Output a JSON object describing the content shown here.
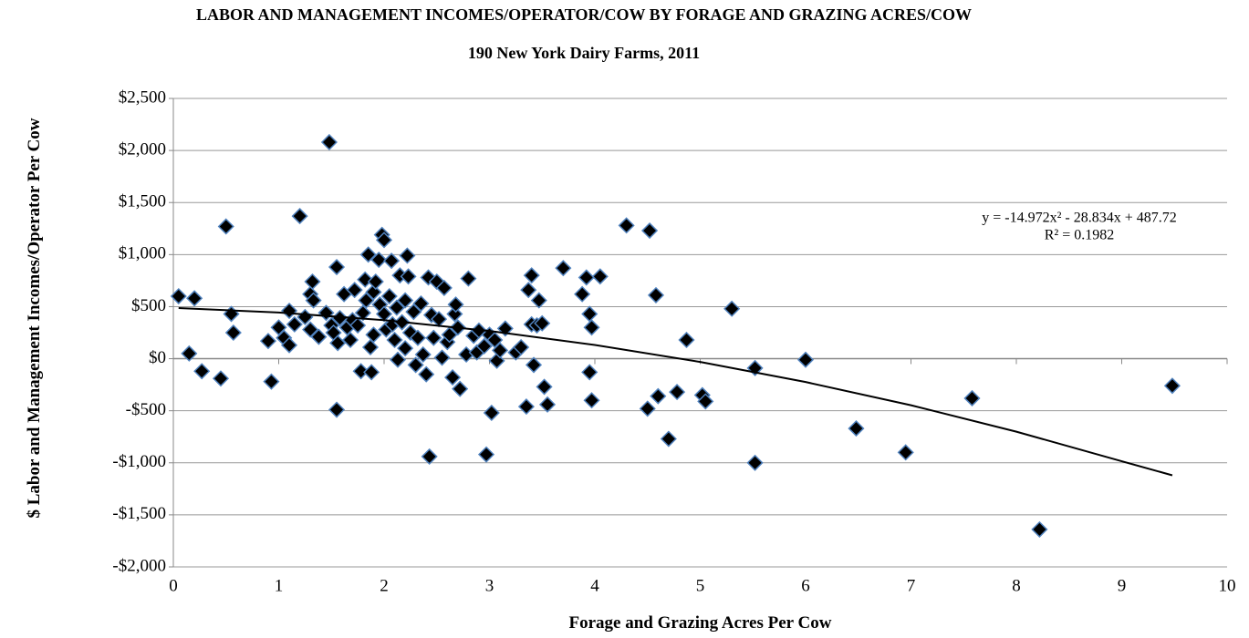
{
  "chart_data": {
    "type": "scatter",
    "title": "LABOR AND MANAGEMENT INCOMES/OPERATOR/COW BY FORAGE AND GRAZING ACRES/COW",
    "subtitle": "190 New York Dairy Farms, 2011",
    "x_label": "Forage and Grazing Acres Per Cow",
    "y_label": "$ Labor and Management Incomes/Operator Per Cow",
    "xlim": [
      0,
      10
    ],
    "xticks": [
      0,
      1,
      2,
      3,
      4,
      5,
      6,
      7,
      8,
      9,
      10
    ],
    "ylim": [
      -2000,
      2500
    ],
    "yticks": [
      {
        "value": -2000,
        "label": "-$2,000"
      },
      {
        "value": -1500,
        "label": "-$1,500"
      },
      {
        "value": -1000,
        "label": "-$1,000"
      },
      {
        "value": -500,
        "label": "-$500"
      },
      {
        "value": 0,
        "label": "$0"
      },
      {
        "value": 500,
        "label": "$500"
      },
      {
        "value": 1000,
        "label": "$1,000"
      },
      {
        "value": 1500,
        "label": "$1,500"
      },
      {
        "value": 2000,
        "label": "$2,000"
      },
      {
        "value": 2500,
        "label": "$2,500"
      }
    ],
    "grid": true,
    "series": [
      {
        "color": "#000000",
        "edge_color": "#4f81bd",
        "x": [
          0.05,
          0.15,
          0.2,
          0.27,
          0.45,
          0.5,
          0.55,
          0.57,
          0.9,
          0.93,
          1.0,
          1.05,
          1.1,
          1.1,
          1.15,
          1.2,
          1.25,
          1.3,
          1.3,
          1.32,
          1.33,
          1.38,
          1.45,
          1.48,
          1.5,
          1.52,
          1.55,
          1.55,
          1.56,
          1.58,
          1.62,
          1.65,
          1.68,
          1.7,
          1.72,
          1.75,
          1.78,
          1.8,
          1.82,
          1.83,
          1.85,
          1.87,
          1.88,
          1.9,
          1.9,
          1.92,
          1.95,
          1.96,
          1.98,
          2.0,
          2.0,
          2.02,
          2.05,
          2.07,
          2.08,
          2.1,
          2.12,
          2.13,
          2.15,
          2.17,
          2.2,
          2.2,
          2.22,
          2.23,
          2.25,
          2.28,
          2.3,
          2.32,
          2.35,
          2.37,
          2.4,
          2.42,
          2.43,
          2.45,
          2.47,
          2.5,
          2.52,
          2.55,
          2.57,
          2.6,
          2.62,
          2.65,
          2.67,
          2.68,
          2.7,
          2.72,
          2.78,
          2.8,
          2.85,
          2.88,
          2.9,
          2.95,
          2.97,
          3.0,
          3.02,
          3.05,
          3.07,
          3.1,
          3.15,
          3.25,
          3.3,
          3.35,
          3.37,
          3.4,
          3.4,
          3.42,
          3.45,
          3.47,
          3.5,
          3.52,
          3.55,
          3.7,
          3.88,
          3.92,
          3.95,
          3.95,
          3.97,
          3.97,
          4.05,
          4.3,
          4.5,
          4.52,
          4.58,
          4.6,
          4.7,
          4.78,
          4.87,
          5.02,
          5.05,
          5.3,
          5.52,
          5.52,
          6.0,
          6.48,
          6.95,
          7.58,
          8.22,
          9.48
        ],
        "values": [
          600,
          50,
          580,
          -120,
          -190,
          1270,
          430,
          250,
          170,
          -220,
          300,
          200,
          130,
          460,
          330,
          1370,
          400,
          620,
          280,
          740,
          560,
          210,
          440,
          2080,
          320,
          250,
          880,
          -490,
          150,
          390,
          620,
          300,
          180,
          370,
          660,
          320,
          -120,
          440,
          760,
          560,
          1000,
          110,
          -130,
          640,
          230,
          740,
          950,
          520,
          1190,
          1140,
          430,
          280,
          600,
          940,
          330,
          180,
          490,
          -10,
          800,
          350,
          100,
          560,
          990,
          790,
          250,
          450,
          -60,
          200,
          530,
          40,
          -150,
          780,
          -940,
          420,
          200,
          740,
          380,
          10,
          680,
          160,
          230,
          -180,
          430,
          520,
          300,
          -290,
          40,
          770,
          220,
          60,
          270,
          120,
          -920,
          230,
          -520,
          180,
          -20,
          80,
          290,
          60,
          110,
          -460,
          660,
          800,
          330,
          -60,
          320,
          560,
          340,
          -270,
          -440,
          870,
          620,
          780,
          430,
          -130,
          -400,
          300,
          790,
          1280,
          -480,
          1230,
          610,
          -360,
          -770,
          -320,
          180,
          -350,
          -410,
          480,
          -90,
          -1000,
          -10,
          -670,
          -900,
          -380,
          -1640,
          -260
        ]
      }
    ],
    "trendline": {
      "color": "#000000",
      "x": [
        0.05,
        1,
        2,
        3,
        4,
        5,
        6,
        7,
        8,
        9,
        9.48
      ],
      "values": [
        486,
        444,
        370,
        266,
        132,
        -31,
        -224,
        -447,
        -701,
        -985,
        -1120
      ],
      "equation": "y = -14.972x² - 28.834x + 487.72",
      "r_squared": "R² = 0.1982"
    }
  }
}
